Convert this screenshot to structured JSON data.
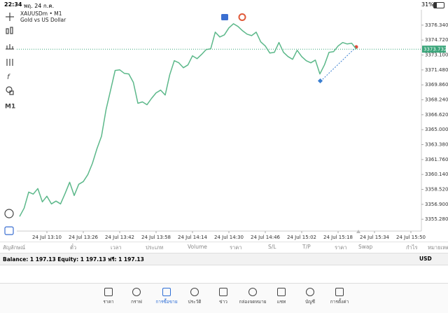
{
  "status_bar": {
    "time": "22:34",
    "date": "พฤ. 24 ก.ค.",
    "battery": "31%"
  },
  "toolbar": {
    "timeframe": "M1"
  },
  "chart_data": {
    "type": "line",
    "title": "XAUUSDm • M1",
    "subtitle": "Gold vs US Dollar",
    "categories": [
      null,
      null,
      null,
      null,
      null,
      null,
      "24 Jul 13:10",
      null,
      null,
      null,
      null,
      null,
      null,
      null,
      "24 Jul 13:26",
      null,
      null,
      null,
      null,
      null,
      null,
      null,
      "24 Jul 13:42",
      null,
      null,
      null,
      null,
      null,
      null,
      null,
      "24 Jul 13:58",
      null,
      null,
      null,
      null,
      null,
      null,
      null,
      "24 Jul 14:14",
      null,
      null,
      null,
      null,
      null,
      null,
      null,
      "24 Jul 14:30",
      null,
      null,
      null,
      null,
      null,
      null,
      null,
      "24 Jul 14:46",
      null,
      null,
      null,
      null,
      null,
      null,
      null,
      "24 Jul 15:02",
      null,
      null,
      null,
      null,
      null,
      null,
      null,
      "24 Jul 15:18",
      null,
      null,
      null,
      null,
      null,
      null,
      null,
      "24 Jul 15:34",
      null,
      null,
      null,
      null,
      null,
      null,
      null,
      "24 Jul 15:50",
      null,
      null
    ],
    "values": [
      3355.58,
      3356.49,
      3358.23,
      3358.01,
      3358.61,
      3357.17,
      3357.78,
      3356.95,
      3357.25,
      3356.95,
      3358.08,
      3359.29,
      3357.86,
      3359.07,
      3359.37,
      3360.13,
      3361.34,
      3362.93,
      3364.29,
      3367.17,
      3369.29,
      3371.42,
      3371.49,
      3371.11,
      3371.04,
      3370.13,
      3367.86,
      3368.01,
      3367.7,
      3368.39,
      3368.99,
      3369.29,
      3368.76,
      3370.96,
      3372.48,
      3372.25,
      3371.72,
      3372.02,
      3373.01,
      3372.7,
      3373.16,
      3373.69,
      3373.76,
      3375.58,
      3375.05,
      3375.28,
      3376.04,
      3376.49,
      3376.19,
      3375.73,
      3375.36,
      3375.2,
      3375.58,
      3374.52,
      3374.07,
      3373.31,
      3373.39,
      3374.45,
      3373.39,
      3372.93,
      3372.63,
      3373.61,
      3372.93,
      3372.48,
      3372.25,
      3372.55,
      3371.04,
      3372.02,
      3373.39,
      3373.46,
      3374.07,
      3374.45,
      3374.29,
      3374.37,
      3373.73,
      null,
      null,
      null,
      null,
      null,
      null,
      null,
      null,
      null,
      null,
      null,
      null,
      null,
      null
    ],
    "color": "#5cb88a",
    "ylim": [
      3354,
      3378
    ],
    "yticks": [
      {
        "value": 3376.34,
        "label": "3376.340"
      },
      {
        "value": 3374.72,
        "label": "3374.720"
      },
      {
        "value": 3373.1,
        "label": "3373.100"
      },
      {
        "value": 3371.48,
        "label": "3371.480"
      },
      {
        "value": 3369.86,
        "label": "3369.860"
      },
      {
        "value": 3368.24,
        "label": "3368.240"
      },
      {
        "value": 3366.62,
        "label": "3366.620"
      },
      {
        "value": 3365,
        "label": "3365.000"
      },
      {
        "value": 3363.38,
        "label": "3363.380"
      },
      {
        "value": 3361.76,
        "label": "3361.760"
      },
      {
        "value": 3360.14,
        "label": "3360.140"
      },
      {
        "value": 3358.52,
        "label": "3358.520"
      },
      {
        "value": 3356.9,
        "label": "3356.900"
      },
      {
        "value": 3355.28,
        "label": "3355.280"
      }
    ],
    "price_line": 3373.732,
    "price_line_color": "#3aa57a",
    "grid": false
  },
  "positions_table": {
    "columns": [
      "สัญลักษณ์",
      "ตั๋ว",
      "เวลา",
      "ประเภท",
      "Volume",
      "ราคา",
      "S/L",
      "T/P",
      "ราคา",
      "Swap",
      "กำไร",
      "หมายเหตุ"
    ]
  },
  "account": {
    "summary": "Balance: 1 197.13 Equity: 1 197.13 ฟรี: 1 197.13",
    "currency": "USD"
  },
  "nav": {
    "items": [
      "ราคา",
      "กราฟ",
      "การซื้อขาย",
      "ประวัติ",
      "ข่าว",
      "กล่องจดหมาย",
      "แชท",
      "บัญชี",
      "การตั้งค่า"
    ],
    "active": 2
  }
}
